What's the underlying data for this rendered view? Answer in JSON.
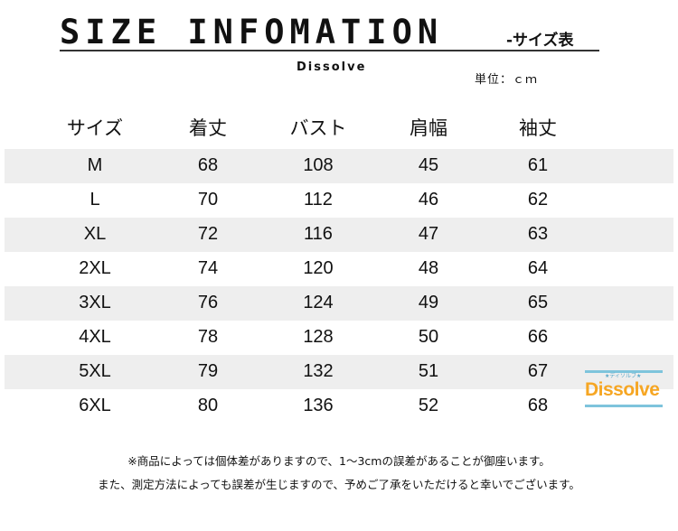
{
  "header": {
    "title": "SIZE INFOMATION",
    "subtitle": "-サイズ表",
    "brand": "Dissolve",
    "unit": "単位：ｃｍ"
  },
  "table": {
    "columns": [
      "サイズ",
      "着丈",
      "バスト",
      "肩幅",
      "袖丈"
    ],
    "rows": [
      [
        "M",
        "68",
        "108",
        "45",
        "61"
      ],
      [
        "L",
        "70",
        "112",
        "46",
        "62"
      ],
      [
        "XL",
        "72",
        "116",
        "47",
        "63"
      ],
      [
        "2XL",
        "74",
        "120",
        "48",
        "64"
      ],
      [
        "3XL",
        "76",
        "124",
        "49",
        "65"
      ],
      [
        "4XL",
        "78",
        "128",
        "50",
        "66"
      ],
      [
        "5XL",
        "79",
        "132",
        "51",
        "67"
      ],
      [
        "6XL",
        "80",
        "136",
        "52",
        "68"
      ]
    ],
    "stripe_color": "#eeeeee"
  },
  "logo": {
    "text": "Dissolve",
    "small": "★ディソルブ★",
    "color": "#f6a623",
    "accent": "#7ec4dc"
  },
  "notes": [
    "※商品によっては個体差がありますので、1～3cmの誤差があることが御座います。",
    "また、測定方法によっても誤差が生じますので、予めご了承をいただけると幸いでございます。"
  ]
}
